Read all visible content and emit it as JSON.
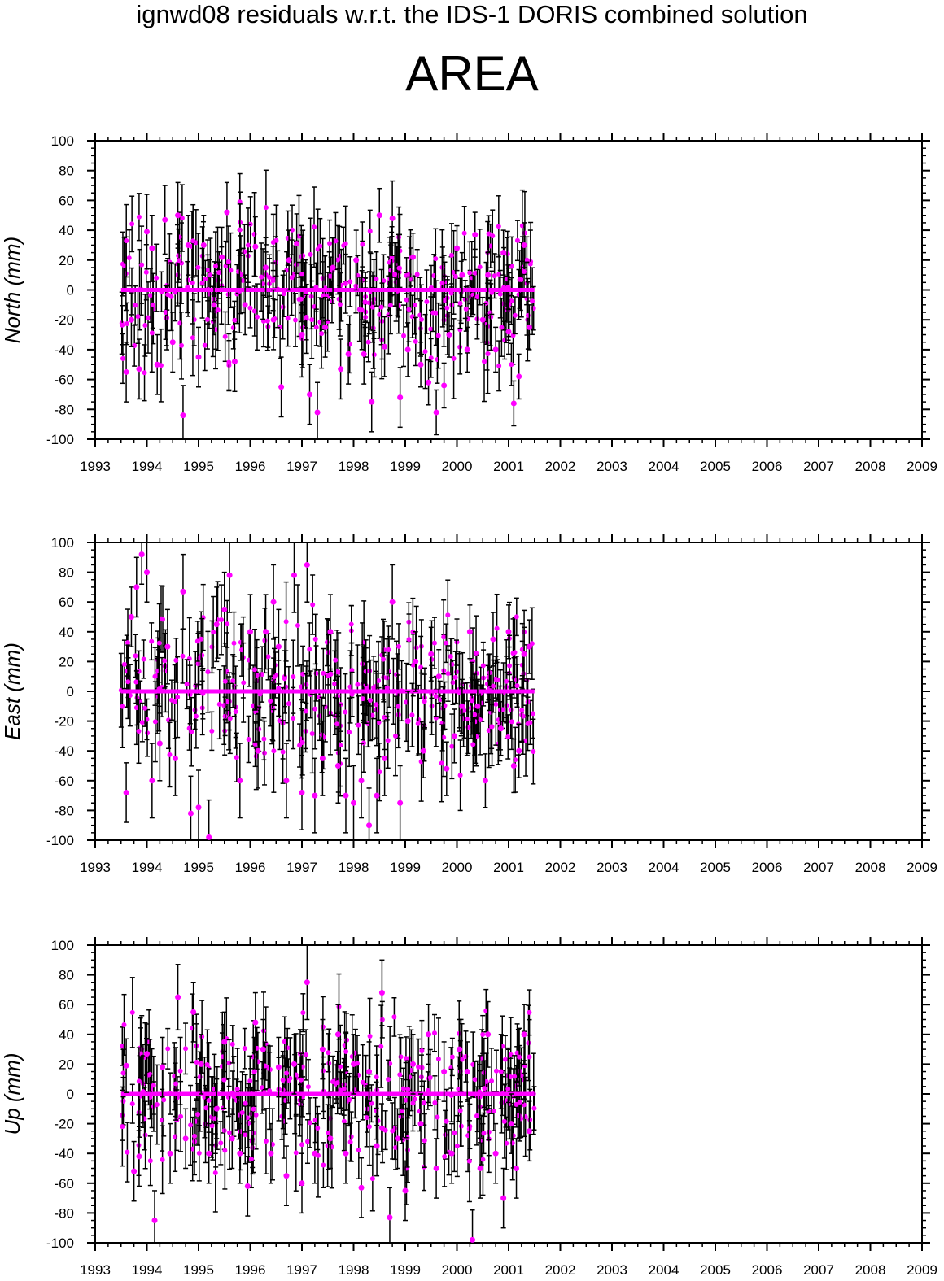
{
  "header": {
    "supertitle": "ignwd08 residuals w.r.t. the IDS-1 DORIS combined solution",
    "title": "AREA"
  },
  "colors": {
    "points": "#ff00ff",
    "errorbars": "#000000",
    "axes": "#000000"
  },
  "chart_data": [
    {
      "type": "scatter",
      "ylabel": "North (mm)",
      "xlim": [
        1993,
        2009
      ],
      "ylim": [
        -100,
        100
      ],
      "x_ticks": [
        "1993",
        "1994",
        "1995",
        "1996",
        "1997",
        "1998",
        "1999",
        "2000",
        "2001",
        "2002",
        "2003",
        "2004",
        "2005",
        "2006",
        "2007",
        "2008",
        "2009"
      ],
      "y_ticks": [
        "100",
        "80",
        "60",
        "40",
        "20",
        "0",
        "-20",
        "-40",
        "-60",
        "-80",
        "-100"
      ],
      "x_range_of_data": [
        1993.5,
        2001.5
      ],
      "series": [
        {
          "x": [
            1993.6,
            1993.7,
            1993.85,
            1994.0,
            1994.1,
            1994.2,
            1994.35,
            1994.5,
            1994.6,
            1994.7,
            1994.8,
            1995.0,
            1995.1,
            1995.3,
            1995.45,
            1995.55,
            1995.7,
            1995.9,
            1996.1,
            1996.3,
            1996.45,
            1996.6,
            1996.75,
            1996.9,
            1997.0,
            1997.15,
            1997.3,
            1997.45,
            1997.6,
            1997.75,
            1997.9,
            1998.05,
            1998.2,
            1998.35,
            1998.5,
            1998.6,
            1998.75,
            1998.9,
            1999.05,
            1999.15,
            1999.3,
            1999.45,
            1999.6,
            1999.75,
            1999.85,
            2000.0,
            2000.1,
            2000.2,
            2000.35,
            2000.5,
            2000.6,
            2000.75,
            2000.9,
            2001.0,
            2001.1,
            2001.2,
            2001.3,
            2001.4
          ],
          "y": [
            -55,
            -20,
            -53,
            39,
            28,
            -50,
            47,
            -35,
            50,
            -84,
            30,
            -45,
            30,
            -10,
            22,
            52,
            -48,
            -10,
            29,
            15,
            -20,
            -65,
            20,
            31,
            -30,
            -70,
            -82,
            -25,
            15,
            -53,
            -43,
            20,
            -43,
            -75,
            50,
            -38,
            48,
            -72,
            -40,
            22,
            -50,
            -62,
            -82,
            -64,
            -30,
            28,
            10,
            -40,
            37,
            -20,
            10,
            -40,
            25,
            -28,
            -76,
            -58,
            30,
            -25
          ],
          "err": [
            20,
            18,
            20,
            25,
            22,
            20,
            23,
            20,
            22,
            20,
            20,
            20,
            20,
            20,
            20,
            20,
            20,
            20,
            20,
            20,
            20,
            20,
            20,
            20,
            20,
            20,
            20,
            20,
            20,
            20,
            20,
            20,
            20,
            20,
            18,
            20,
            25,
            20,
            18,
            16,
            15,
            15,
            15,
            15,
            15,
            15,
            15,
            15,
            15,
            15,
            15,
            15,
            15,
            15,
            15,
            15,
            15,
            15
          ]
        }
      ]
    },
    {
      "type": "scatter",
      "ylabel": "East (mm)",
      "xlim": [
        1993,
        2009
      ],
      "ylim": [
        -100,
        100
      ],
      "x_ticks": [
        "1993",
        "1994",
        "1995",
        "1996",
        "1997",
        "1998",
        "1999",
        "2000",
        "2001",
        "2002",
        "2003",
        "2004",
        "2005",
        "2006",
        "2007",
        "2008",
        "2009"
      ],
      "y_ticks": [
        "100",
        "80",
        "60",
        "40",
        "20",
        "0",
        "-20",
        "-40",
        "-60",
        "-80",
        "-100"
      ],
      "x_range_of_data": [
        1993.5,
        2001.5
      ],
      "series": [
        {
          "x": [
            1993.6,
            1993.7,
            1993.8,
            1993.9,
            1994.0,
            1994.1,
            1994.25,
            1994.4,
            1994.55,
            1994.7,
            1994.85,
            1995.0,
            1995.2,
            1995.35,
            1995.5,
            1995.6,
            1995.8,
            1996.0,
            1996.15,
            1996.3,
            1996.45,
            1996.55,
            1996.7,
            1996.85,
            1997.0,
            1997.1,
            1997.25,
            1997.4,
            1997.55,
            1997.7,
            1997.85,
            1998.0,
            1998.15,
            1998.3,
            1998.45,
            1998.6,
            1998.75,
            1998.9,
            1999.05,
            1999.2,
            1999.35,
            1999.5,
            1999.65,
            1999.8,
            1999.95,
            2000.1,
            2000.25,
            2000.4,
            2000.55,
            2000.7,
            2000.85,
            2001.0,
            2001.1,
            2001.2,
            2001.3,
            2001.4
          ],
          "y": [
            -68,
            50,
            70,
            92,
            80,
            -60,
            -35,
            30,
            -45,
            67,
            -82,
            -78,
            -98,
            45,
            55,
            78,
            -60,
            40,
            -40,
            40,
            60,
            30,
            -60,
            78,
            -68,
            85,
            -70,
            -45,
            40,
            -50,
            -70,
            -75,
            -60,
            -90,
            -70,
            -45,
            60,
            -75,
            -20,
            20,
            -40,
            25,
            10,
            -52,
            -30,
            -10,
            40,
            -10,
            -60,
            35,
            -25,
            40,
            -50,
            -40,
            25,
            30
          ],
          "err": [
            20,
            20,
            20,
            20,
            20,
            25,
            25,
            25,
            25,
            25,
            25,
            25,
            25,
            25,
            25,
            25,
            25,
            25,
            25,
            25,
            25,
            25,
            25,
            25,
            25,
            25,
            25,
            25,
            25,
            25,
            25,
            25,
            25,
            25,
            25,
            25,
            25,
            25,
            20,
            20,
            18,
            18,
            18,
            18,
            18,
            18,
            18,
            18,
            18,
            18,
            18,
            18,
            18,
            18,
            18,
            18
          ]
        }
      ]
    },
    {
      "type": "scatter",
      "ylabel": "Up (mm)",
      "xlim": [
        1993,
        2009
      ],
      "ylim": [
        -100,
        100
      ],
      "x_ticks": [
        "1993",
        "1994",
        "1995",
        "1996",
        "1997",
        "1998",
        "1999",
        "2000",
        "2001",
        "2002",
        "2003",
        "2004",
        "2005",
        "2006",
        "2007",
        "2008",
        "2009"
      ],
      "y_ticks": [
        "100",
        "80",
        "60",
        "40",
        "20",
        "0",
        "-20",
        "-40",
        "-60",
        "-80",
        "-100"
      ],
      "x_range_of_data": [
        1993.5,
        2001.5
      ],
      "series": [
        {
          "x": [
            1993.6,
            1993.75,
            1993.85,
            1994.0,
            1994.15,
            1994.3,
            1994.45,
            1994.6,
            1994.75,
            1994.9,
            1995.05,
            1995.2,
            1995.35,
            1995.5,
            1995.65,
            1995.8,
            1995.95,
            1996.1,
            1996.25,
            1996.4,
            1996.55,
            1996.7,
            1996.85,
            1997.0,
            1997.1,
            1997.25,
            1997.4,
            1997.55,
            1997.7,
            1997.85,
            1998.0,
            1998.15,
            1998.3,
            1998.45,
            1998.55,
            1998.7,
            1998.85,
            1999.0,
            1999.15,
            1999.3,
            1999.45,
            1999.6,
            1999.75,
            1999.9,
            2000.05,
            2000.2,
            2000.3,
            2000.45,
            2000.6,
            2000.75,
            2000.9,
            2001.05,
            2001.15,
            2001.3,
            2001.4
          ],
          "y": [
            19,
            -52,
            -42,
            27,
            -85,
            18,
            -40,
            65,
            -30,
            55,
            20,
            -40,
            -10,
            35,
            -30,
            -40,
            -62,
            48,
            30,
            -40,
            18,
            -55,
            20,
            -60,
            75,
            -40,
            30,
            -30,
            40,
            -40,
            20,
            -63,
            15,
            -35,
            68,
            -83,
            -30,
            -65,
            20,
            -20,
            40,
            -50,
            15,
            -40,
            30,
            15,
            -98,
            -50,
            40,
            -40,
            -70,
            -20,
            -50,
            40,
            -25
          ],
          "err": [
            18,
            20,
            20,
            20,
            20,
            20,
            20,
            22,
            20,
            20,
            20,
            20,
            20,
            20,
            20,
            20,
            20,
            20,
            20,
            20,
            20,
            20,
            20,
            20,
            25,
            20,
            20,
            20,
            20,
            20,
            20,
            20,
            20,
            20,
            22,
            20,
            20,
            20,
            20,
            20,
            20,
            20,
            20,
            20,
            20,
            20,
            20,
            20,
            22,
            20,
            20,
            20,
            20,
            20,
            20
          ]
        }
      ]
    }
  ]
}
